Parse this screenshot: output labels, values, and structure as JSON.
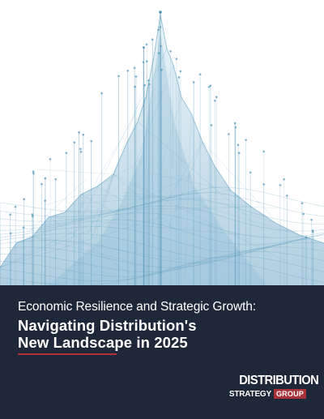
{
  "cover": {
    "subtitle": "Economic Resilience and Strategic Growth:",
    "title_line1": "Navigating Distribution's",
    "title_line2": "New Landscape in 2025"
  },
  "logo": {
    "word1": "DISTRIBUTION",
    "word2": "STRATEGY",
    "word3": "GROUP"
  },
  "colors": {
    "panel": "#1f2838",
    "accent": "#b3323a",
    "graphic_blue": "#4f93b8"
  }
}
